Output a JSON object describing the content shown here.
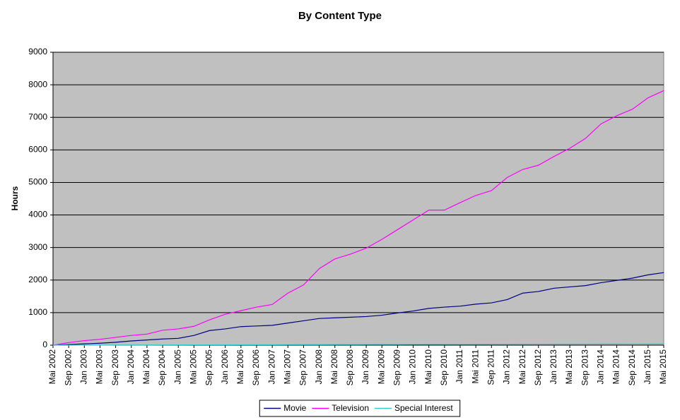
{
  "chart_data": {
    "type": "line",
    "title": "By Content Type",
    "y_label": "Hours",
    "categories": [
      "Mai 2002",
      "Sep 2002",
      "Jan 2003",
      "Mai 2003",
      "Sep 2003",
      "Jan 2004",
      "Mai 2004",
      "Sep 2004",
      "Jan 2005",
      "Mai 2005",
      "Sep 2005",
      "Jan 2006",
      "Mai 2006",
      "Sep 2006",
      "Jan 2007",
      "Mai 2007",
      "Sep 2007",
      "Jan 2008",
      "Mai 2008",
      "Sep 2008",
      "Jan 2009",
      "Mai 2009",
      "Sep 2009",
      "Jan 2010",
      "Mai 2010",
      "Sep 2010",
      "Jan 2011",
      "Mai 2011",
      "Sep 2011",
      "Jan 2012",
      "Mai 2012",
      "Sep 2012",
      "Jan 2013",
      "Mai 2013",
      "Sep 2013",
      "Jan 2014",
      "Mai 2014",
      "Sep 2014",
      "Jan 2015",
      "Mai 2015"
    ],
    "series": [
      {
        "name": "Movie",
        "color": "#000080",
        "values": [
          0,
          20,
          40,
          60,
          90,
          130,
          160,
          190,
          210,
          300,
          450,
          500,
          570,
          590,
          610,
          680,
          750,
          820,
          840,
          860,
          880,
          920,
          990,
          1050,
          1130,
          1170,
          1200,
          1260,
          1300,
          1400,
          1600,
          1650,
          1750,
          1790,
          1830,
          1920,
          1990,
          2060,
          2160,
          2230
        ]
      },
      {
        "name": "Television",
        "color": "#ff00ff",
        "values": [
          0,
          80,
          140,
          180,
          240,
          300,
          340,
          460,
          500,
          580,
          780,
          950,
          1060,
          1170,
          1250,
          1600,
          1850,
          2350,
          2650,
          2800,
          2980,
          3250,
          3550,
          3850,
          4150,
          4150,
          4380,
          4600,
          4750,
          5150,
          5400,
          5530,
          5800,
          6050,
          6350,
          6800,
          7050,
          7250,
          7600,
          7820
        ]
      },
      {
        "name": "Special Interest",
        "color": "#33cccc",
        "values": [
          0,
          0,
          2,
          3,
          4,
          5,
          6,
          7,
          8,
          9,
          10,
          11,
          12,
          13,
          14,
          15,
          16,
          17,
          18,
          19,
          20,
          21,
          22,
          23,
          24,
          25,
          26,
          27,
          28,
          29,
          30,
          31,
          32,
          33,
          34,
          35,
          36,
          37,
          38,
          40
        ]
      }
    ],
    "ylim": [
      0,
      9000
    ],
    "yticks": [
      0,
      1000,
      2000,
      3000,
      4000,
      5000,
      6000,
      7000,
      8000,
      9000
    ],
    "grid": true,
    "plot_background": "#c0c0c0",
    "legend": "bottom"
  }
}
